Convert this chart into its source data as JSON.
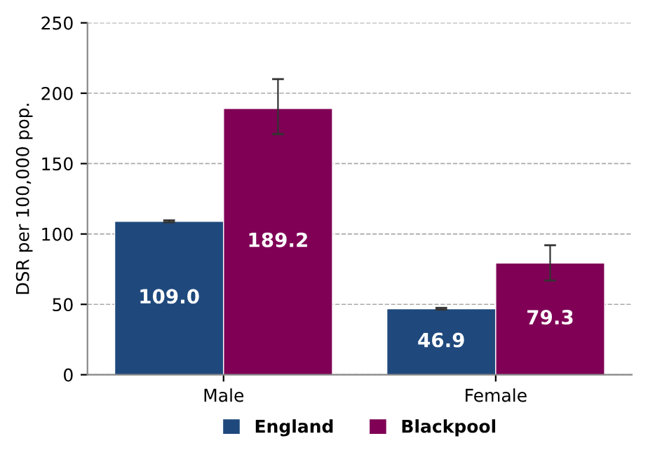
{
  "chart_data": {
    "type": "bar",
    "ylabel": "DSR per 100,000 pop.",
    "categories": [
      "Male",
      "Female"
    ],
    "series": [
      {
        "name": "England",
        "color": "#1f497d",
        "values": [
          109.0,
          46.9
        ],
        "value_labels": [
          "109.0",
          "46.9"
        ],
        "errors": [
          0.7,
          0.6
        ]
      },
      {
        "name": "Blackpool",
        "color": "#7f0055",
        "values": [
          189.2,
          79.3
        ],
        "value_labels": [
          "189.2",
          "79.3"
        ],
        "errors": [
          [
            171,
            210
          ],
          [
            67,
            92
          ]
        ]
      }
    ],
    "ylim": [
      0,
      250
    ],
    "yticks": [
      0,
      50,
      100,
      150,
      200,
      250
    ],
    "grid": "y",
    "legend": "bottom"
  }
}
